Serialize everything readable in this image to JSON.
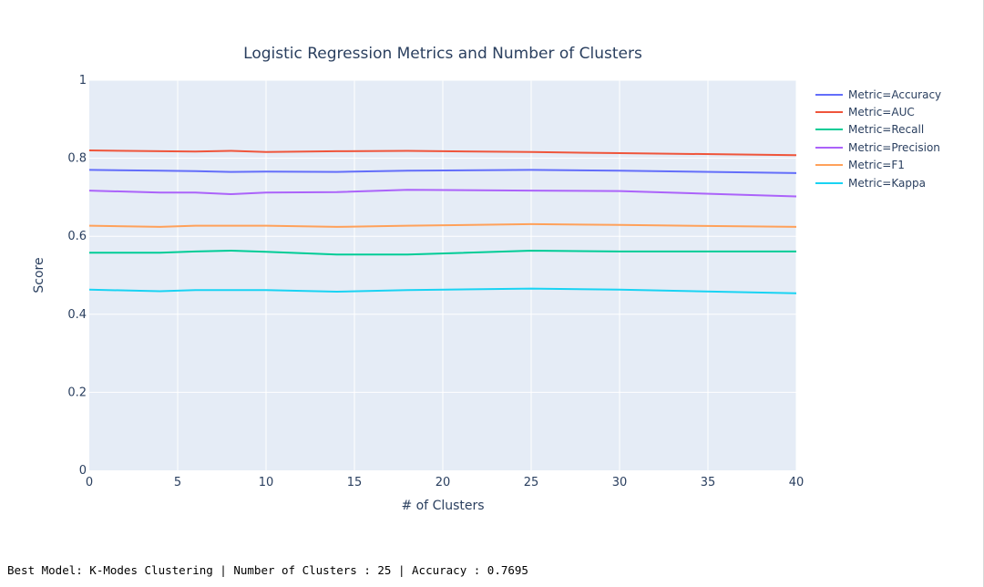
{
  "chart_data": {
    "type": "line",
    "title": "Logistic Regression Metrics and Number of Clusters",
    "xlabel": "# of Clusters",
    "ylabel": "Score",
    "xlim": [
      0,
      40
    ],
    "ylim": [
      0,
      1
    ],
    "xticks": [
      0,
      5,
      10,
      15,
      20,
      25,
      30,
      35,
      40
    ],
    "yticks": [
      0,
      0.2,
      0.4,
      0.6,
      0.8,
      1
    ],
    "ytick_labels": [
      "0",
      "0.2",
      "0.4",
      "0.6",
      "0.8",
      "1"
    ],
    "grid": true,
    "legend_position": "top-right",
    "plot_background": "#e5ecf6",
    "series": [
      {
        "name": "Metric=Accuracy",
        "color": "#636efa",
        "x": [
          0,
          4,
          6,
          8,
          10,
          14,
          18,
          25,
          30,
          40
        ],
        "y": [
          0.77,
          0.768,
          0.767,
          0.765,
          0.766,
          0.765,
          0.768,
          0.77,
          0.768,
          0.762
        ]
      },
      {
        "name": "Metric=AUC",
        "color": "#ef553b",
        "x": [
          0,
          4,
          6,
          8,
          10,
          14,
          18,
          25,
          30,
          40
        ],
        "y": [
          0.82,
          0.818,
          0.817,
          0.819,
          0.816,
          0.818,
          0.819,
          0.816,
          0.813,
          0.808
        ]
      },
      {
        "name": "Metric=Recall",
        "color": "#00cc96",
        "x": [
          0,
          4,
          6,
          8,
          10,
          14,
          18,
          25,
          30,
          40
        ],
        "y": [
          0.558,
          0.558,
          0.561,
          0.563,
          0.56,
          0.553,
          0.553,
          0.563,
          0.561,
          0.561
        ]
      },
      {
        "name": "Metric=Precision",
        "color": "#ab63fa",
        "x": [
          0,
          4,
          6,
          8,
          10,
          14,
          18,
          25,
          30,
          40
        ],
        "y": [
          0.717,
          0.712,
          0.712,
          0.708,
          0.712,
          0.713,
          0.719,
          0.717,
          0.716,
          0.702
        ]
      },
      {
        "name": "Metric=F1",
        "color": "#ffa15a",
        "x": [
          0,
          4,
          6,
          8,
          10,
          14,
          18,
          25,
          30,
          40
        ],
        "y": [
          0.627,
          0.624,
          0.627,
          0.627,
          0.627,
          0.624,
          0.627,
          0.631,
          0.629,
          0.624
        ]
      },
      {
        "name": "Metric=Kappa",
        "color": "#19d3f3",
        "x": [
          0,
          4,
          6,
          8,
          10,
          14,
          18,
          25,
          30,
          40
        ],
        "y": [
          0.463,
          0.459,
          0.462,
          0.462,
          0.462,
          0.458,
          0.462,
          0.466,
          0.463,
          0.454
        ]
      }
    ]
  },
  "footer": {
    "text": "Best Model: K-Modes Clustering | Number of Clusters : 25 | Accuracy : 0.7695"
  }
}
